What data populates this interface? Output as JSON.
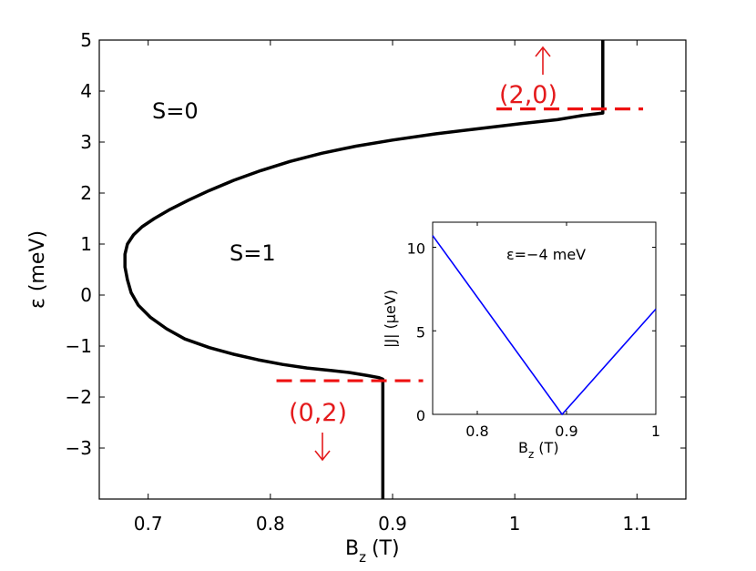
{
  "colors": {
    "main_curve": "#000000",
    "inset_curve": "#0000ff",
    "dashed": "#ee1111",
    "red_text": "#e41a1c"
  },
  "chart_data": [
    {
      "type": "line",
      "title": "",
      "xlabel": "B",
      "xlabel_subscript": "z",
      "xlabel_unit": "(T)",
      "ylabel": "ε (meV)",
      "xlim": [
        0.66,
        1.14
      ],
      "ylim": [
        -4,
        5
      ],
      "xticks": [
        0.7,
        0.8,
        0.9,
        1,
        1.1
      ],
      "xtick_labels": [
        "0.7",
        "0.8",
        "0.9",
        "1",
        "1.1"
      ],
      "yticks": [
        -3,
        -2,
        -1,
        0,
        1,
        2,
        3,
        4,
        5
      ],
      "ytick_labels": [
        "−3",
        "−2",
        "−1",
        "0",
        "1",
        "2",
        "3",
        "4",
        "5"
      ],
      "grid": false,
      "series": [
        {
          "x": [
            0.892,
            0.892,
            0.889,
            0.88,
            0.865,
            0.85,
            0.83,
            0.81,
            0.79,
            0.77,
            0.75,
            0.73,
            0.715,
            0.702,
            0.692,
            0.686,
            0.683,
            0.681,
            0.681,
            0.683,
            0.688,
            0.695,
            0.705,
            0.718,
            0.733,
            0.75,
            0.77,
            0.792,
            0.816,
            0.842,
            0.87,
            0.9,
            0.935,
            0.97,
            1.005,
            1.035,
            1.055,
            1.072,
            1.072,
            1.072
          ],
          "y": [
            -4.0,
            -1.65,
            -1.62,
            -1.58,
            -1.52,
            -1.48,
            -1.43,
            -1.36,
            -1.27,
            -1.16,
            -1.03,
            -0.86,
            -0.66,
            -0.44,
            -0.2,
            0.05,
            0.3,
            0.55,
            0.8,
            1.0,
            1.18,
            1.34,
            1.5,
            1.68,
            1.86,
            2.05,
            2.25,
            2.44,
            2.62,
            2.78,
            2.92,
            3.04,
            3.16,
            3.26,
            3.36,
            3.44,
            3.52,
            3.57,
            3.57,
            5.0
          ]
        }
      ],
      "annotations": [
        {
          "text": "S=0",
          "x": 0.74,
          "y": 3.8
        },
        {
          "text": "S=1",
          "x": 0.79,
          "y": 1.0
        },
        {
          "text": "(2,0)",
          "x": 1.035,
          "y": 4.0,
          "arrow": "up"
        },
        {
          "text": "(0,2)",
          "x": 0.856,
          "y": -2.3,
          "arrow": "down"
        }
      ],
      "dashed_lines": [
        {
          "y": 3.65,
          "x": [
            0.985,
            1.105
          ]
        },
        {
          "y": -1.68,
          "x": [
            0.805,
            0.925
          ]
        }
      ]
    },
    {
      "type": "line",
      "title": "ε=−4 meV",
      "xlabel": "B",
      "xlabel_subscript": "z",
      "xlabel_unit": "(T)",
      "ylabel": "|J| (µeV)",
      "xlim": [
        0.75,
        1.0
      ],
      "ylim": [
        0,
        11.5
      ],
      "xticks": [
        0.8,
        0.9,
        1.0
      ],
      "xtick_labels": [
        "0.8",
        "0.9",
        "1"
      ],
      "yticks": [
        0,
        5,
        10
      ],
      "ytick_labels": [
        "0",
        "5",
        "10"
      ],
      "grid": false,
      "series": [
        {
          "x": [
            0.75,
            0.895,
            1.0
          ],
          "y": [
            10.7,
            0.0,
            6.3
          ]
        }
      ]
    }
  ]
}
